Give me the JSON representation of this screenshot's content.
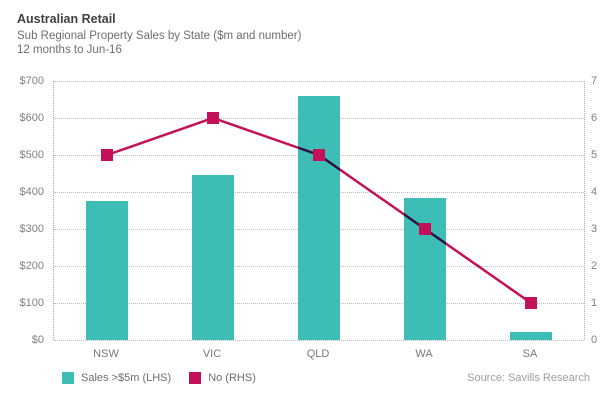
{
  "header": {
    "title": "Australian Retail",
    "subtitle": "Sub Regional Property Sales by State ($m and number)",
    "period": "12 months to Jun-16"
  },
  "chart_data": {
    "type": "combo",
    "categories": [
      "NSW",
      "VIC",
      "QLD",
      "WA",
      "SA"
    ],
    "series": [
      {
        "name": "Sales >$5m (LHS)",
        "type": "bar",
        "axis": "left",
        "color": "#3dbdb6",
        "values": [
          375,
          445,
          660,
          385,
          22
        ]
      },
      {
        "name": "No (RHS)",
        "type": "line",
        "axis": "right",
        "color": "#c31159",
        "marker": "square",
        "values": [
          5,
          6,
          5,
          3,
          1
        ]
      }
    ],
    "left_axis": {
      "min": 0,
      "max": 700,
      "step": 100,
      "tick_labels": [
        "$0",
        "$100",
        "$200",
        "$300",
        "$400",
        "$500",
        "$600",
        "$700"
      ]
    },
    "right_axis": {
      "min": 0,
      "max": 7,
      "step": 1,
      "tick_labels": [
        "0",
        "1",
        "2",
        "3",
        "4",
        "5",
        "6",
        "7"
      ]
    },
    "grid": "horizontal-dotted",
    "legend_position": "bottom-left"
  },
  "footer": {
    "source": "Source: Savills Research"
  }
}
